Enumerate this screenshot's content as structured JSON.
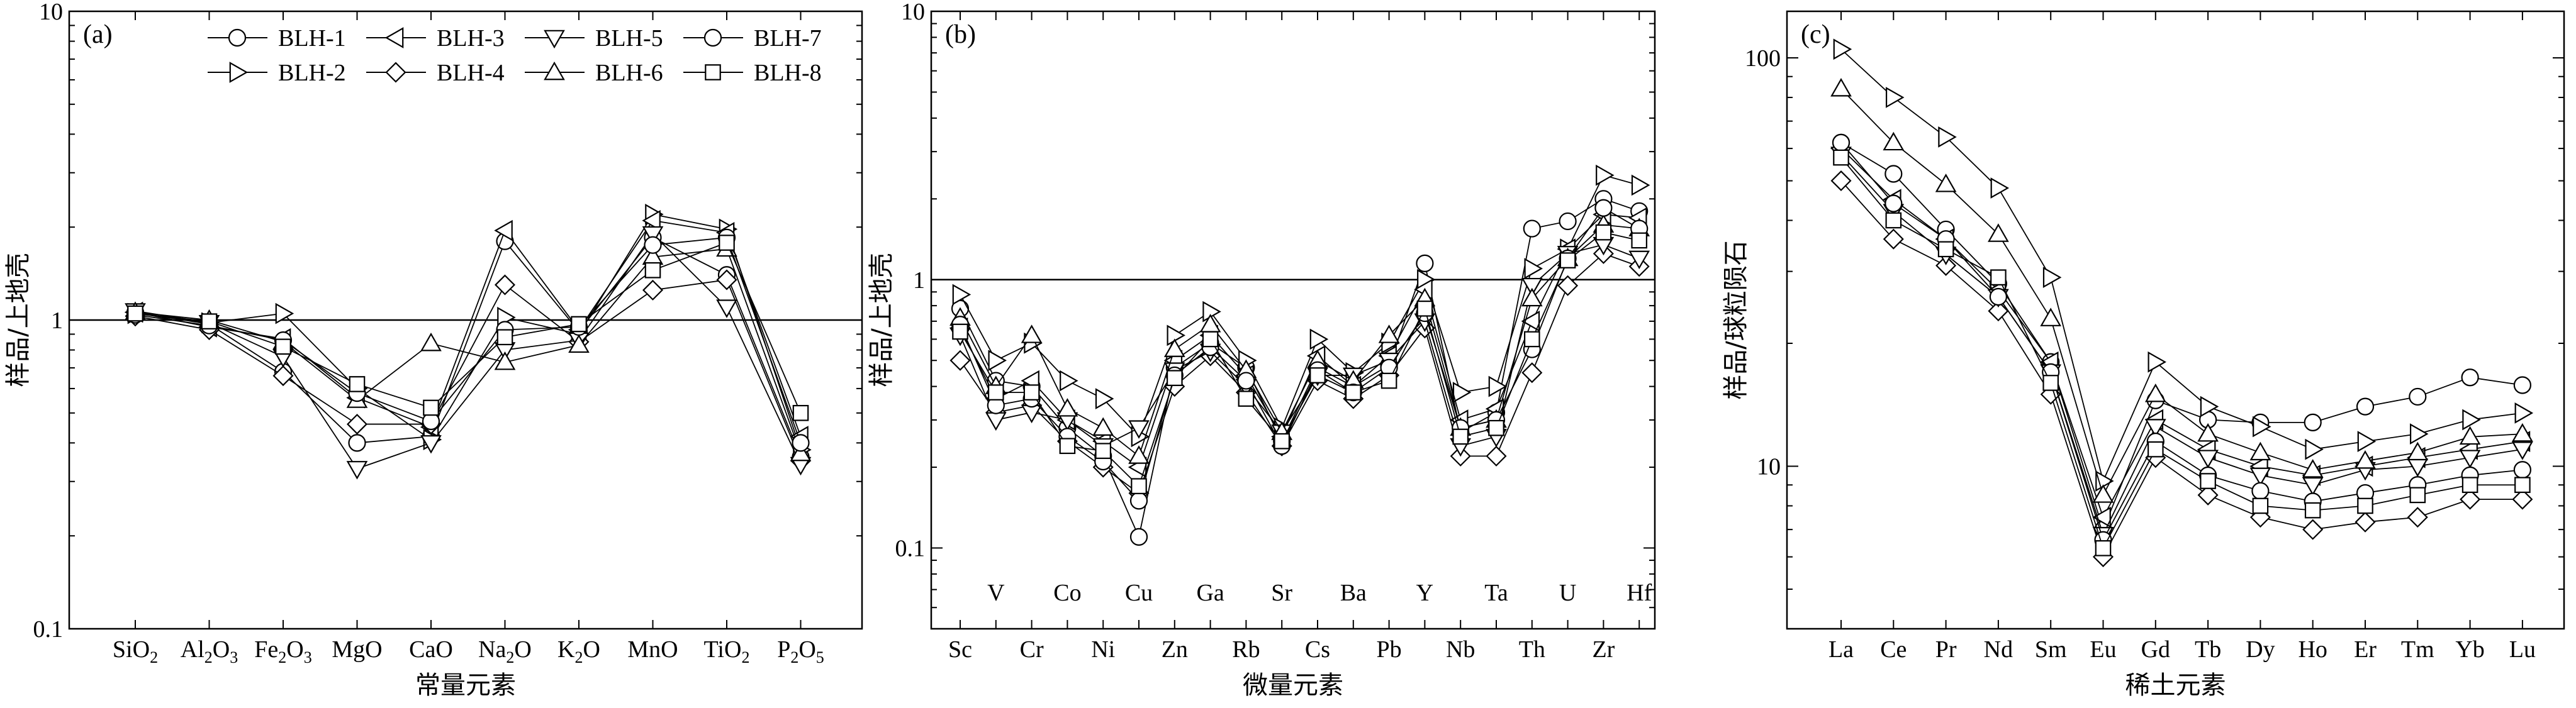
{
  "figure": {
    "legend": {
      "entries": [
        {
          "name": "BLH-1",
          "marker": "circle"
        },
        {
          "name": "BLH-2",
          "marker": "triangle-right"
        },
        {
          "name": "BLH-3",
          "marker": "triangle-left"
        },
        {
          "name": "BLH-4",
          "marker": "diamond"
        },
        {
          "name": "BLH-5",
          "marker": "triangle-down"
        },
        {
          "name": "BLH-6",
          "marker": "triangle-up"
        },
        {
          "name": "BLH-7",
          "marker": "circle"
        },
        {
          "name": "BLH-8",
          "marker": "square"
        }
      ],
      "placement": "top-right of panel (a)"
    }
  },
  "chart_data": [
    {
      "type": "line",
      "panel_label": "(a)",
      "xlabel": "常量元素",
      "ylabel": "样品/上地壳",
      "yscale": "log",
      "ylim": [
        0.1,
        10
      ],
      "ytick_labels": [
        "0.1",
        "1",
        "10"
      ],
      "reference_line": 1,
      "categories": [
        {
          "base": "SiO",
          "sub": "2"
        },
        {
          "base": "Al",
          "sub": "2",
          "base2": "O",
          "sub2": "3"
        },
        {
          "base": "Fe",
          "sub": "2",
          "base2": "O",
          "sub2": "3"
        },
        {
          "base": "MgO"
        },
        {
          "base": "CaO"
        },
        {
          "base": "Na",
          "sub": "2",
          "base2": "O"
        },
        {
          "base": "K",
          "sub": "2",
          "base2": "O"
        },
        {
          "base": "MnO"
        },
        {
          "base": "TiO",
          "sub": "2"
        },
        {
          "base": "P",
          "sub": "2",
          "base2": "O",
          "sub2": "5"
        }
      ],
      "series": [
        {
          "name": "BLH-1",
          "values": [
            1.06,
            0.97,
            0.68,
            0.4,
            0.42,
            1.8,
            0.92,
            1.85,
            1.4,
            0.36
          ]
        },
        {
          "name": "BLH-2",
          "values": [
            1.05,
            0.98,
            1.05,
            0.6,
            0.41,
            1.02,
            0.9,
            2.2,
            1.97,
            0.38
          ]
        },
        {
          "name": "BLH-3",
          "values": [
            1.06,
            0.95,
            0.87,
            0.56,
            0.45,
            1.95,
            0.93,
            2.1,
            1.92,
            0.42
          ]
        },
        {
          "name": "BLH-4",
          "values": [
            1.03,
            0.93,
            0.66,
            0.46,
            0.46,
            1.3,
            0.85,
            1.25,
            1.35,
            0.35
          ]
        },
        {
          "name": "BLH-5",
          "values": [
            1.07,
            0.98,
            0.76,
            0.33,
            0.4,
            0.8,
            0.86,
            1.9,
            1.1,
            0.34
          ]
        },
        {
          "name": "BLH-6",
          "values": [
            1.06,
            1.0,
            0.85,
            0.55,
            0.84,
            0.73,
            0.83,
            1.6,
            1.7,
            0.37
          ]
        },
        {
          "name": "BLH-7",
          "values": [
            1.04,
            0.96,
            0.86,
            0.58,
            0.47,
            0.93,
            0.95,
            1.75,
            1.85,
            0.4
          ]
        },
        {
          "name": "BLH-8",
          "values": [
            1.05,
            0.99,
            0.82,
            0.62,
            0.52,
            0.88,
            0.97,
            1.45,
            1.78,
            0.5
          ]
        }
      ]
    },
    {
      "type": "line",
      "panel_label": "(b)",
      "xlabel": "微量元素",
      "ylabel": "样品/上地壳",
      "yscale": "log",
      "ylim": [
        0.05,
        10
      ],
      "ytick_labels": [
        "0.1",
        "1",
        "10"
      ],
      "reference_line": 1,
      "categories": [
        "Sc",
        "V",
        "Cr",
        "Co",
        "Ni",
        "Cu",
        "Zn",
        "Ga",
        "Rb",
        "Sr",
        "Cs",
        "Ba",
        "Pb",
        "Y",
        "Nb",
        "Ta",
        "Th",
        "U",
        "Zr",
        "Hf"
      ],
      "category_label_rows": [
        "bottom",
        "top",
        "bottom",
        "top",
        "bottom",
        "top",
        "bottom",
        "top",
        "bottom",
        "top",
        "bottom",
        "top",
        "bottom",
        "top",
        "bottom",
        "top",
        "bottom",
        "top",
        "bottom",
        "top"
      ],
      "series": [
        {
          "name": "BLH-1",
          "values": [
            0.78,
            0.42,
            0.4,
            0.28,
            0.22,
            0.11,
            0.47,
            0.58,
            0.47,
            0.25,
            0.47,
            0.4,
            0.48,
            1.15,
            0.27,
            0.32,
            1.55,
            1.65,
            2.0,
            1.8
          ]
        },
        {
          "name": "BLH-2",
          "values": [
            0.88,
            0.5,
            0.58,
            0.42,
            0.36,
            0.26,
            0.62,
            0.76,
            0.5,
            0.28,
            0.6,
            0.45,
            0.58,
            1.0,
            0.38,
            0.4,
            1.1,
            1.3,
            2.45,
            2.25
          ]
        },
        {
          "name": "BLH-3",
          "values": [
            0.66,
            0.36,
            0.42,
            0.3,
            0.25,
            0.2,
            0.5,
            0.62,
            0.44,
            0.26,
            0.52,
            0.4,
            0.52,
            0.92,
            0.3,
            0.33,
            0.7,
            1.3,
            1.75,
            1.7
          ]
        },
        {
          "name": "BLH-4",
          "values": [
            0.5,
            0.32,
            0.34,
            0.25,
            0.2,
            0.16,
            0.4,
            0.52,
            0.38,
            0.24,
            0.42,
            0.36,
            0.44,
            0.66,
            0.22,
            0.22,
            0.45,
            0.95,
            1.25,
            1.12
          ]
        },
        {
          "name": "BLH-5",
          "values": [
            0.62,
            0.3,
            0.32,
            0.3,
            0.24,
            0.28,
            0.46,
            0.54,
            0.4,
            0.27,
            0.44,
            0.44,
            0.5,
            0.7,
            0.24,
            0.26,
            0.95,
            1.25,
            1.35,
            1.2
          ]
        },
        {
          "name": "BLH-6",
          "values": [
            0.72,
            0.4,
            0.62,
            0.33,
            0.28,
            0.22,
            0.55,
            0.68,
            0.46,
            0.27,
            0.5,
            0.42,
            0.62,
            0.85,
            0.28,
            0.3,
            0.85,
            1.2,
            1.6,
            1.55
          ]
        },
        {
          "name": "BLH-7",
          "values": [
            0.68,
            0.34,
            0.36,
            0.26,
            0.21,
            0.15,
            0.44,
            0.56,
            0.42,
            0.24,
            0.46,
            0.38,
            0.47,
            0.75,
            0.28,
            0.3,
            0.55,
            1.2,
            1.85,
            1.55
          ]
        },
        {
          "name": "BLH-8",
          "values": [
            0.64,
            0.38,
            0.38,
            0.24,
            0.23,
            0.17,
            0.43,
            0.6,
            0.36,
            0.25,
            0.44,
            0.38,
            0.42,
            0.78,
            0.26,
            0.28,
            0.6,
            1.18,
            1.5,
            1.4
          ]
        }
      ]
    },
    {
      "type": "line",
      "panel_label": "(c)",
      "xlabel": "稀土元素",
      "ylabel": "样品/球粒陨石",
      "yscale": "log",
      "ylim": [
        4,
        130
      ],
      "ytick_labels": [
        "10",
        "100"
      ],
      "categories": [
        "La",
        "Ce",
        "Pr",
        "Nd",
        "Sm",
        "Eu",
        "Gd",
        "Tb",
        "Dy",
        "Ho",
        "Er",
        "Tm",
        "Yb",
        "Lu"
      ],
      "series": [
        {
          "name": "BLH-1",
          "values": [
            62,
            52,
            38,
            28,
            18,
            7.0,
            14.5,
            13.0,
            12.8,
            12.8,
            14.0,
            14.8,
            16.5,
            15.8
          ]
        },
        {
          "name": "BLH-2",
          "values": [
            105,
            80,
            64,
            48,
            29,
            9.2,
            18.0,
            14.0,
            12.5,
            11.0,
            11.5,
            12.0,
            13.0,
            13.5
          ]
        },
        {
          "name": "BLH-3",
          "values": [
            60,
            45,
            36,
            27,
            18,
            7.5,
            13.0,
            11.0,
            10.0,
            9.5,
            10.0,
            10.5,
            11.0,
            11.5
          ]
        },
        {
          "name": "BLH-4",
          "values": [
            50,
            36,
            31,
            24,
            15,
            6.0,
            10.5,
            8.5,
            7.5,
            7.0,
            7.3,
            7.5,
            8.3,
            8.3
          ]
        },
        {
          "name": "BLH-5",
          "values": [
            58,
            42,
            33,
            26,
            17,
            6.8,
            12.5,
            10.5,
            9.5,
            9.0,
            9.8,
            10.0,
            10.5,
            11.0
          ]
        },
        {
          "name": "BLH-6",
          "values": [
            84,
            62,
            49,
            37,
            23,
            8.5,
            15.0,
            12.0,
            10.8,
            9.8,
            10.3,
            10.8,
            11.8,
            12.0
          ]
        },
        {
          "name": "BLH-7",
          "values": [
            62,
            44,
            36,
            26,
            17,
            6.6,
            11.5,
            9.5,
            8.7,
            8.2,
            8.6,
            9.0,
            9.5,
            9.8
          ]
        },
        {
          "name": "BLH-8",
          "values": [
            57,
            40,
            34,
            29,
            16,
            6.3,
            11.0,
            9.2,
            8.0,
            7.8,
            8.0,
            8.5,
            9.0,
            9.0
          ]
        }
      ]
    }
  ]
}
